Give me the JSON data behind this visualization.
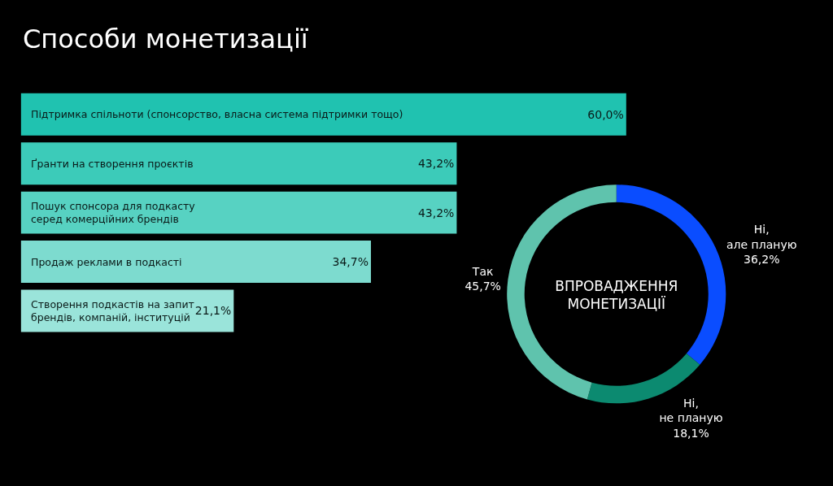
{
  "chart_data": [
    {
      "type": "bar",
      "orientation": "horizontal",
      "title": "Способи монетизації",
      "categories": [
        "Підтримка спільноти (спонсорство, власна система підтримки тощо)",
        "Ґранти на створення проєктів",
        "Пошук спонсора для подкасту\nсеред комерційних брендів",
        "Продаж реклами в подкасті",
        "Створення подкастів на запит\nбрендів, компаній, інституцій"
      ],
      "values": [
        60.0,
        43.2,
        43.2,
        34.7,
        21.1
      ],
      "value_labels": [
        "60,0%",
        "43,2%",
        "43,2%",
        "34,7%",
        "21,1%"
      ],
      "colors": [
        "#20c2b0",
        "#3ccbb9",
        "#57d2c2",
        "#7ddbcf",
        "#9ae4da"
      ],
      "tick_labels": false,
      "grid": false
    },
    {
      "type": "donut",
      "title": "ВПРОВАДЖЕННЯ\nМОНЕТИЗАЦІЇ",
      "categories": [
        "Ні,\nале планую",
        "Ні,\nне планую",
        "Так"
      ],
      "values": [
        36.2,
        18.1,
        45.7
      ],
      "value_labels": [
        "36,2%",
        "18,1%",
        "45,7%"
      ],
      "colors": [
        "#0a4dff",
        "#0c8a70",
        "#5fc3ad"
      ]
    }
  ]
}
